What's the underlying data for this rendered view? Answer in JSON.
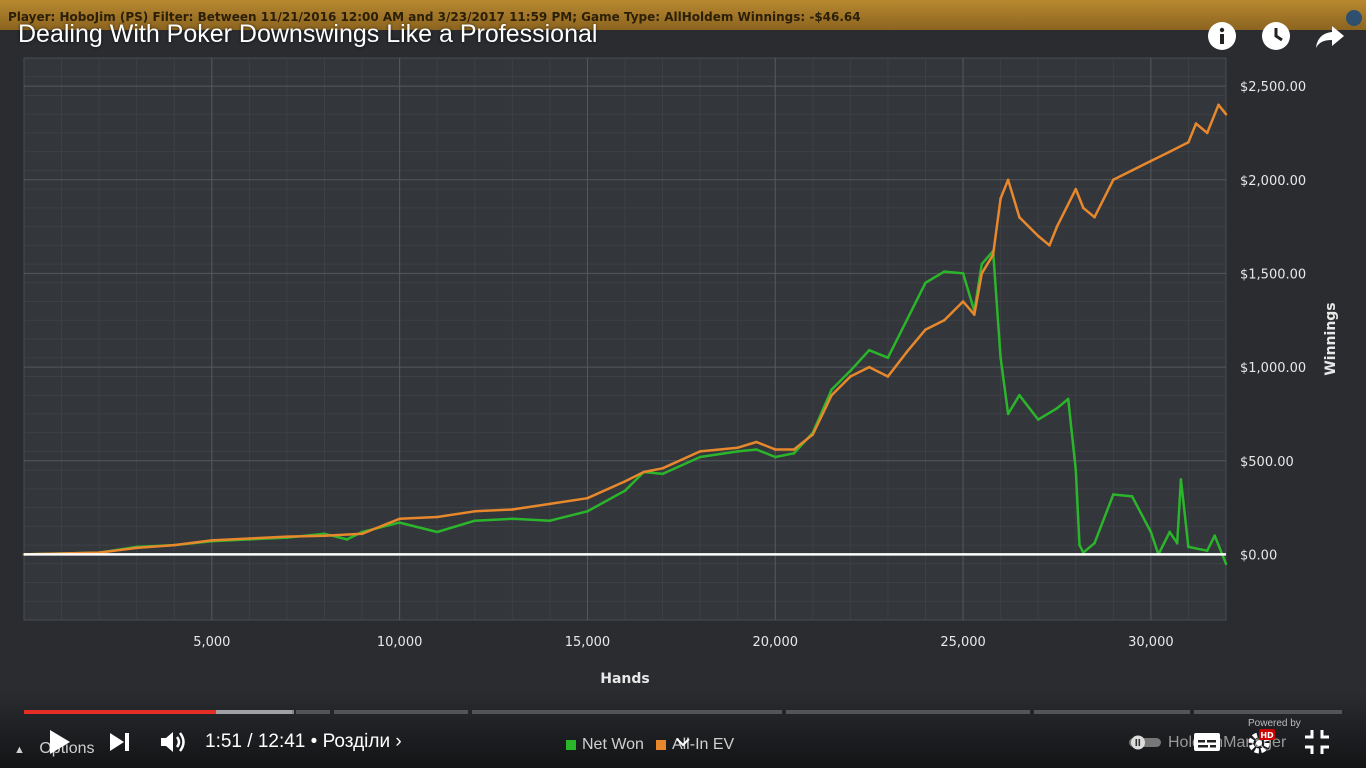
{
  "video": {
    "title": "Dealing With Poker Downswings Like a Professional",
    "time_current": "1:51",
    "time_total": "12:41",
    "time_display": "1:51 / 12:41",
    "chapters_label": "• Розділи ›",
    "progress_played_fraction": 0.146,
    "hd_badge": "HD",
    "top_icons": [
      "info-icon",
      "watch-later-icon",
      "share-icon"
    ],
    "control_icons": [
      "play-icon",
      "next-icon",
      "volume-icon",
      "autoplay-toggle-icon",
      "subtitles-icon",
      "settings-icon",
      "fullscreen-icon"
    ]
  },
  "app": {
    "filter_text": "Player:  HoboJim (PS)  Filter:  Between 11/21/2016 12:00 AM and 3/23/2017 11:59 PM; Game Type: AllHoldem  Winnings:  -$46.64",
    "options_label": "Options",
    "manager_label": "HoldemManager",
    "powered_label": "Powered by",
    "accent": "#b8892f"
  },
  "chart_data": {
    "type": "line",
    "xlabel": "Hands",
    "ylabel": "Winnings",
    "xlim": [
      0,
      32000
    ],
    "ylim": [
      -350,
      2650
    ],
    "x_ticks": [
      5000,
      10000,
      15000,
      20000,
      25000,
      30000
    ],
    "x_tick_labels": [
      "5,000",
      "10,000",
      "15,000",
      "20,000",
      "25,000",
      "30,000"
    ],
    "y_ticks": [
      0,
      500,
      1000,
      1500,
      2000,
      2500
    ],
    "y_tick_labels": [
      "$0.00",
      "$500.00",
      "$1,000.00",
      "$1,500.00",
      "$2,000.00",
      "$2,500.00"
    ],
    "grid": true,
    "legend": "bottom-center",
    "zero_line_color": "#ffffff",
    "series": [
      {
        "name": "Net Won",
        "color": "#2bb52b",
        "points": [
          [
            0,
            0
          ],
          [
            2000,
            10
          ],
          [
            3000,
            40
          ],
          [
            4000,
            50
          ],
          [
            5000,
            70
          ],
          [
            6000,
            80
          ],
          [
            7000,
            90
          ],
          [
            8000,
            110
          ],
          [
            8600,
            80
          ],
          [
            9000,
            120
          ],
          [
            10000,
            170
          ],
          [
            11000,
            120
          ],
          [
            12000,
            180
          ],
          [
            13000,
            190
          ],
          [
            14000,
            180
          ],
          [
            15000,
            230
          ],
          [
            16000,
            340
          ],
          [
            16500,
            440
          ],
          [
            17000,
            430
          ],
          [
            18000,
            520
          ],
          [
            19000,
            550
          ],
          [
            19500,
            560
          ],
          [
            20000,
            520
          ],
          [
            20500,
            540
          ],
          [
            21000,
            650
          ],
          [
            21500,
            880
          ],
          [
            22000,
            980
          ],
          [
            22500,
            1090
          ],
          [
            23000,
            1050
          ],
          [
            23500,
            1250
          ],
          [
            24000,
            1450
          ],
          [
            24500,
            1510
          ],
          [
            25000,
            1500
          ],
          [
            25300,
            1300
          ],
          [
            25500,
            1550
          ],
          [
            25800,
            1620
          ],
          [
            26000,
            1050
          ],
          [
            26200,
            750
          ],
          [
            26500,
            850
          ],
          [
            27000,
            720
          ],
          [
            27500,
            780
          ],
          [
            27800,
            830
          ],
          [
            28000,
            450
          ],
          [
            28100,
            50
          ],
          [
            28200,
            10
          ],
          [
            28500,
            60
          ],
          [
            29000,
            320
          ],
          [
            29500,
            310
          ],
          [
            30000,
            120
          ],
          [
            30200,
            0
          ],
          [
            30500,
            120
          ],
          [
            30700,
            60
          ],
          [
            30800,
            400
          ],
          [
            31000,
            40
          ],
          [
            31500,
            20
          ],
          [
            31700,
            100
          ],
          [
            32000,
            -50
          ]
        ]
      },
      {
        "name": "All-In EV",
        "color": "#e8882c",
        "points": [
          [
            0,
            0
          ],
          [
            2000,
            10
          ],
          [
            3000,
            35
          ],
          [
            4000,
            50
          ],
          [
            5000,
            75
          ],
          [
            6000,
            85
          ],
          [
            7000,
            95
          ],
          [
            8000,
            100
          ],
          [
            9000,
            110
          ],
          [
            10000,
            190
          ],
          [
            11000,
            200
          ],
          [
            12000,
            230
          ],
          [
            13000,
            240
          ],
          [
            14000,
            270
          ],
          [
            15000,
            300
          ],
          [
            16000,
            390
          ],
          [
            16500,
            440
          ],
          [
            17000,
            460
          ],
          [
            18000,
            550
          ],
          [
            19000,
            570
          ],
          [
            19500,
            600
          ],
          [
            20000,
            560
          ],
          [
            20500,
            560
          ],
          [
            21000,
            640
          ],
          [
            21500,
            850
          ],
          [
            22000,
            950
          ],
          [
            22500,
            1000
          ],
          [
            23000,
            950
          ],
          [
            23500,
            1080
          ],
          [
            24000,
            1200
          ],
          [
            24500,
            1250
          ],
          [
            25000,
            1350
          ],
          [
            25300,
            1280
          ],
          [
            25500,
            1500
          ],
          [
            25800,
            1600
          ],
          [
            26000,
            1900
          ],
          [
            26200,
            2000
          ],
          [
            26500,
            1800
          ],
          [
            27000,
            1700
          ],
          [
            27300,
            1650
          ],
          [
            27500,
            1750
          ],
          [
            28000,
            1950
          ],
          [
            28200,
            1850
          ],
          [
            28500,
            1800
          ],
          [
            29000,
            2000
          ],
          [
            29500,
            2050
          ],
          [
            30000,
            2100
          ],
          [
            30500,
            2150
          ],
          [
            31000,
            2200
          ],
          [
            31200,
            2300
          ],
          [
            31500,
            2250
          ],
          [
            31800,
            2400
          ],
          [
            32000,
            2350
          ]
        ]
      }
    ]
  }
}
